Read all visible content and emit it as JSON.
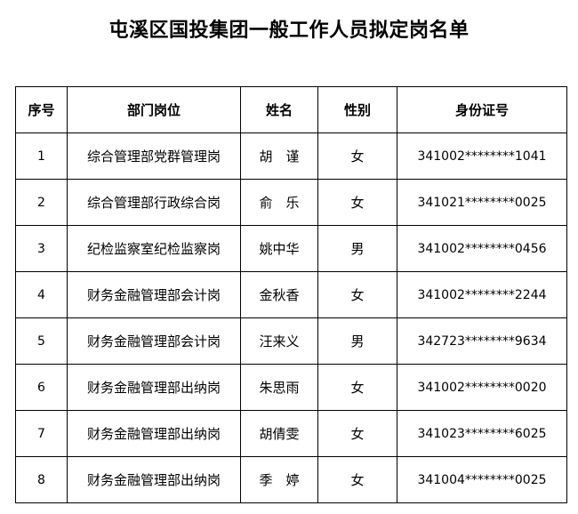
{
  "title": "屯溪区国投集团一般工作人员拟定岗名单",
  "headers": [
    "序号",
    "部门岗位",
    "姓名",
    "性别",
    "身份证号"
  ],
  "rows": [
    [
      "1",
      "综合管理部党群管理岗",
      "胡　谨",
      "女",
      "341002********1041"
    ],
    [
      "2",
      "综合管理部行政综合岗",
      "俞　乐",
      "女",
      "341021********0025"
    ],
    [
      "3",
      "纪检监察室纪检监察岗",
      "姚中华",
      "男",
      "341002********0456"
    ],
    [
      "4",
      "财务金融管理部会计岗",
      "金秋香",
      "女",
      "341002********2244"
    ],
    [
      "5",
      "财务金融管理部会计岗",
      "汪来义",
      "男",
      "342723********9634"
    ],
    [
      "6",
      "财务金融管理部出纳岗",
      "朱思雨",
      "女",
      "341002********0020"
    ],
    [
      "7",
      "财务金融管理部出纳岗",
      "胡倩雯",
      "女",
      "341023********6025"
    ],
    [
      "8",
      "财务金融管理部出纳岗",
      "季　婷",
      "女",
      "341004********0025"
    ]
  ]
}
